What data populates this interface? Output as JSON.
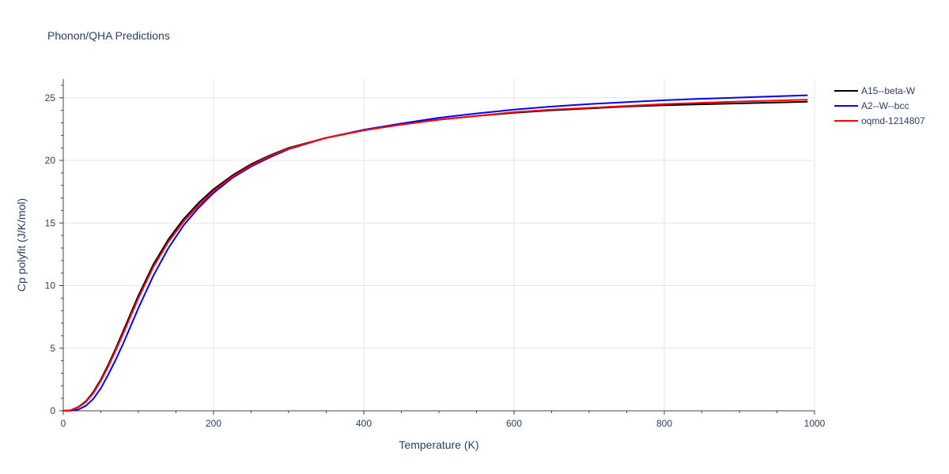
{
  "chart_data": {
    "type": "line",
    "title": "Phonon/QHA Predictions",
    "xlabel": "Temperature (K)",
    "ylabel": "Cp polyfit (J/K/mol)",
    "xlim": [
      0,
      1000
    ],
    "ylim": [
      0,
      26.5
    ],
    "x_ticks": [
      0,
      200,
      400,
      600,
      800,
      1000
    ],
    "y_ticks": [
      0,
      5,
      10,
      15,
      20,
      25
    ],
    "grid": true,
    "legend": "top-right",
    "series": [
      {
        "name": "A15--beta-W",
        "color": "#000000",
        "x": [
          0,
          10,
          20,
          30,
          40,
          50,
          60,
          70,
          80,
          90,
          100,
          120,
          140,
          160,
          180,
          200,
          225,
          250,
          275,
          300,
          350,
          400,
          450,
          500,
          550,
          600,
          650,
          700,
          750,
          800,
          850,
          900,
          950,
          990
        ],
        "y": [
          0,
          0.05,
          0.3,
          0.75,
          1.5,
          2.5,
          3.7,
          5.0,
          6.4,
          7.8,
          9.2,
          11.7,
          13.7,
          15.3,
          16.6,
          17.7,
          18.8,
          19.7,
          20.4,
          21.0,
          21.8,
          22.4,
          22.9,
          23.25,
          23.55,
          23.8,
          24.0,
          24.15,
          24.3,
          24.4,
          24.48,
          24.55,
          24.62,
          24.68
        ]
      },
      {
        "name": "A2--W--bcc",
        "color": "#0000ff",
        "x": [
          0,
          10,
          20,
          30,
          40,
          50,
          60,
          70,
          80,
          90,
          100,
          120,
          140,
          160,
          180,
          200,
          225,
          250,
          275,
          300,
          350,
          400,
          450,
          500,
          550,
          600,
          650,
          700,
          750,
          800,
          850,
          900,
          950,
          990
        ],
        "y": [
          0,
          0.01,
          0.1,
          0.4,
          0.95,
          1.8,
          2.9,
          4.1,
          5.4,
          6.8,
          8.2,
          10.8,
          13.0,
          14.8,
          16.2,
          17.4,
          18.6,
          19.5,
          20.25,
          20.9,
          21.8,
          22.45,
          22.95,
          23.4,
          23.75,
          24.05,
          24.3,
          24.5,
          24.65,
          24.8,
          24.92,
          25.02,
          25.12,
          25.2
        ]
      },
      {
        "name": "oqmd-1214807",
        "color": "#ff0000",
        "x": [
          0,
          10,
          20,
          30,
          40,
          50,
          60,
          70,
          80,
          90,
          100,
          120,
          140,
          160,
          180,
          200,
          225,
          250,
          275,
          300,
          350,
          400,
          450,
          500,
          550,
          600,
          650,
          700,
          750,
          800,
          850,
          900,
          950,
          990
        ],
        "y": [
          0,
          0.04,
          0.28,
          0.7,
          1.4,
          2.4,
          3.55,
          4.85,
          6.2,
          7.6,
          9.0,
          11.5,
          13.5,
          15.1,
          16.4,
          17.55,
          18.7,
          19.6,
          20.35,
          20.95,
          21.8,
          22.4,
          22.85,
          23.25,
          23.55,
          23.85,
          24.05,
          24.2,
          24.35,
          24.5,
          24.6,
          24.7,
          24.78,
          24.85
        ]
      }
    ]
  }
}
